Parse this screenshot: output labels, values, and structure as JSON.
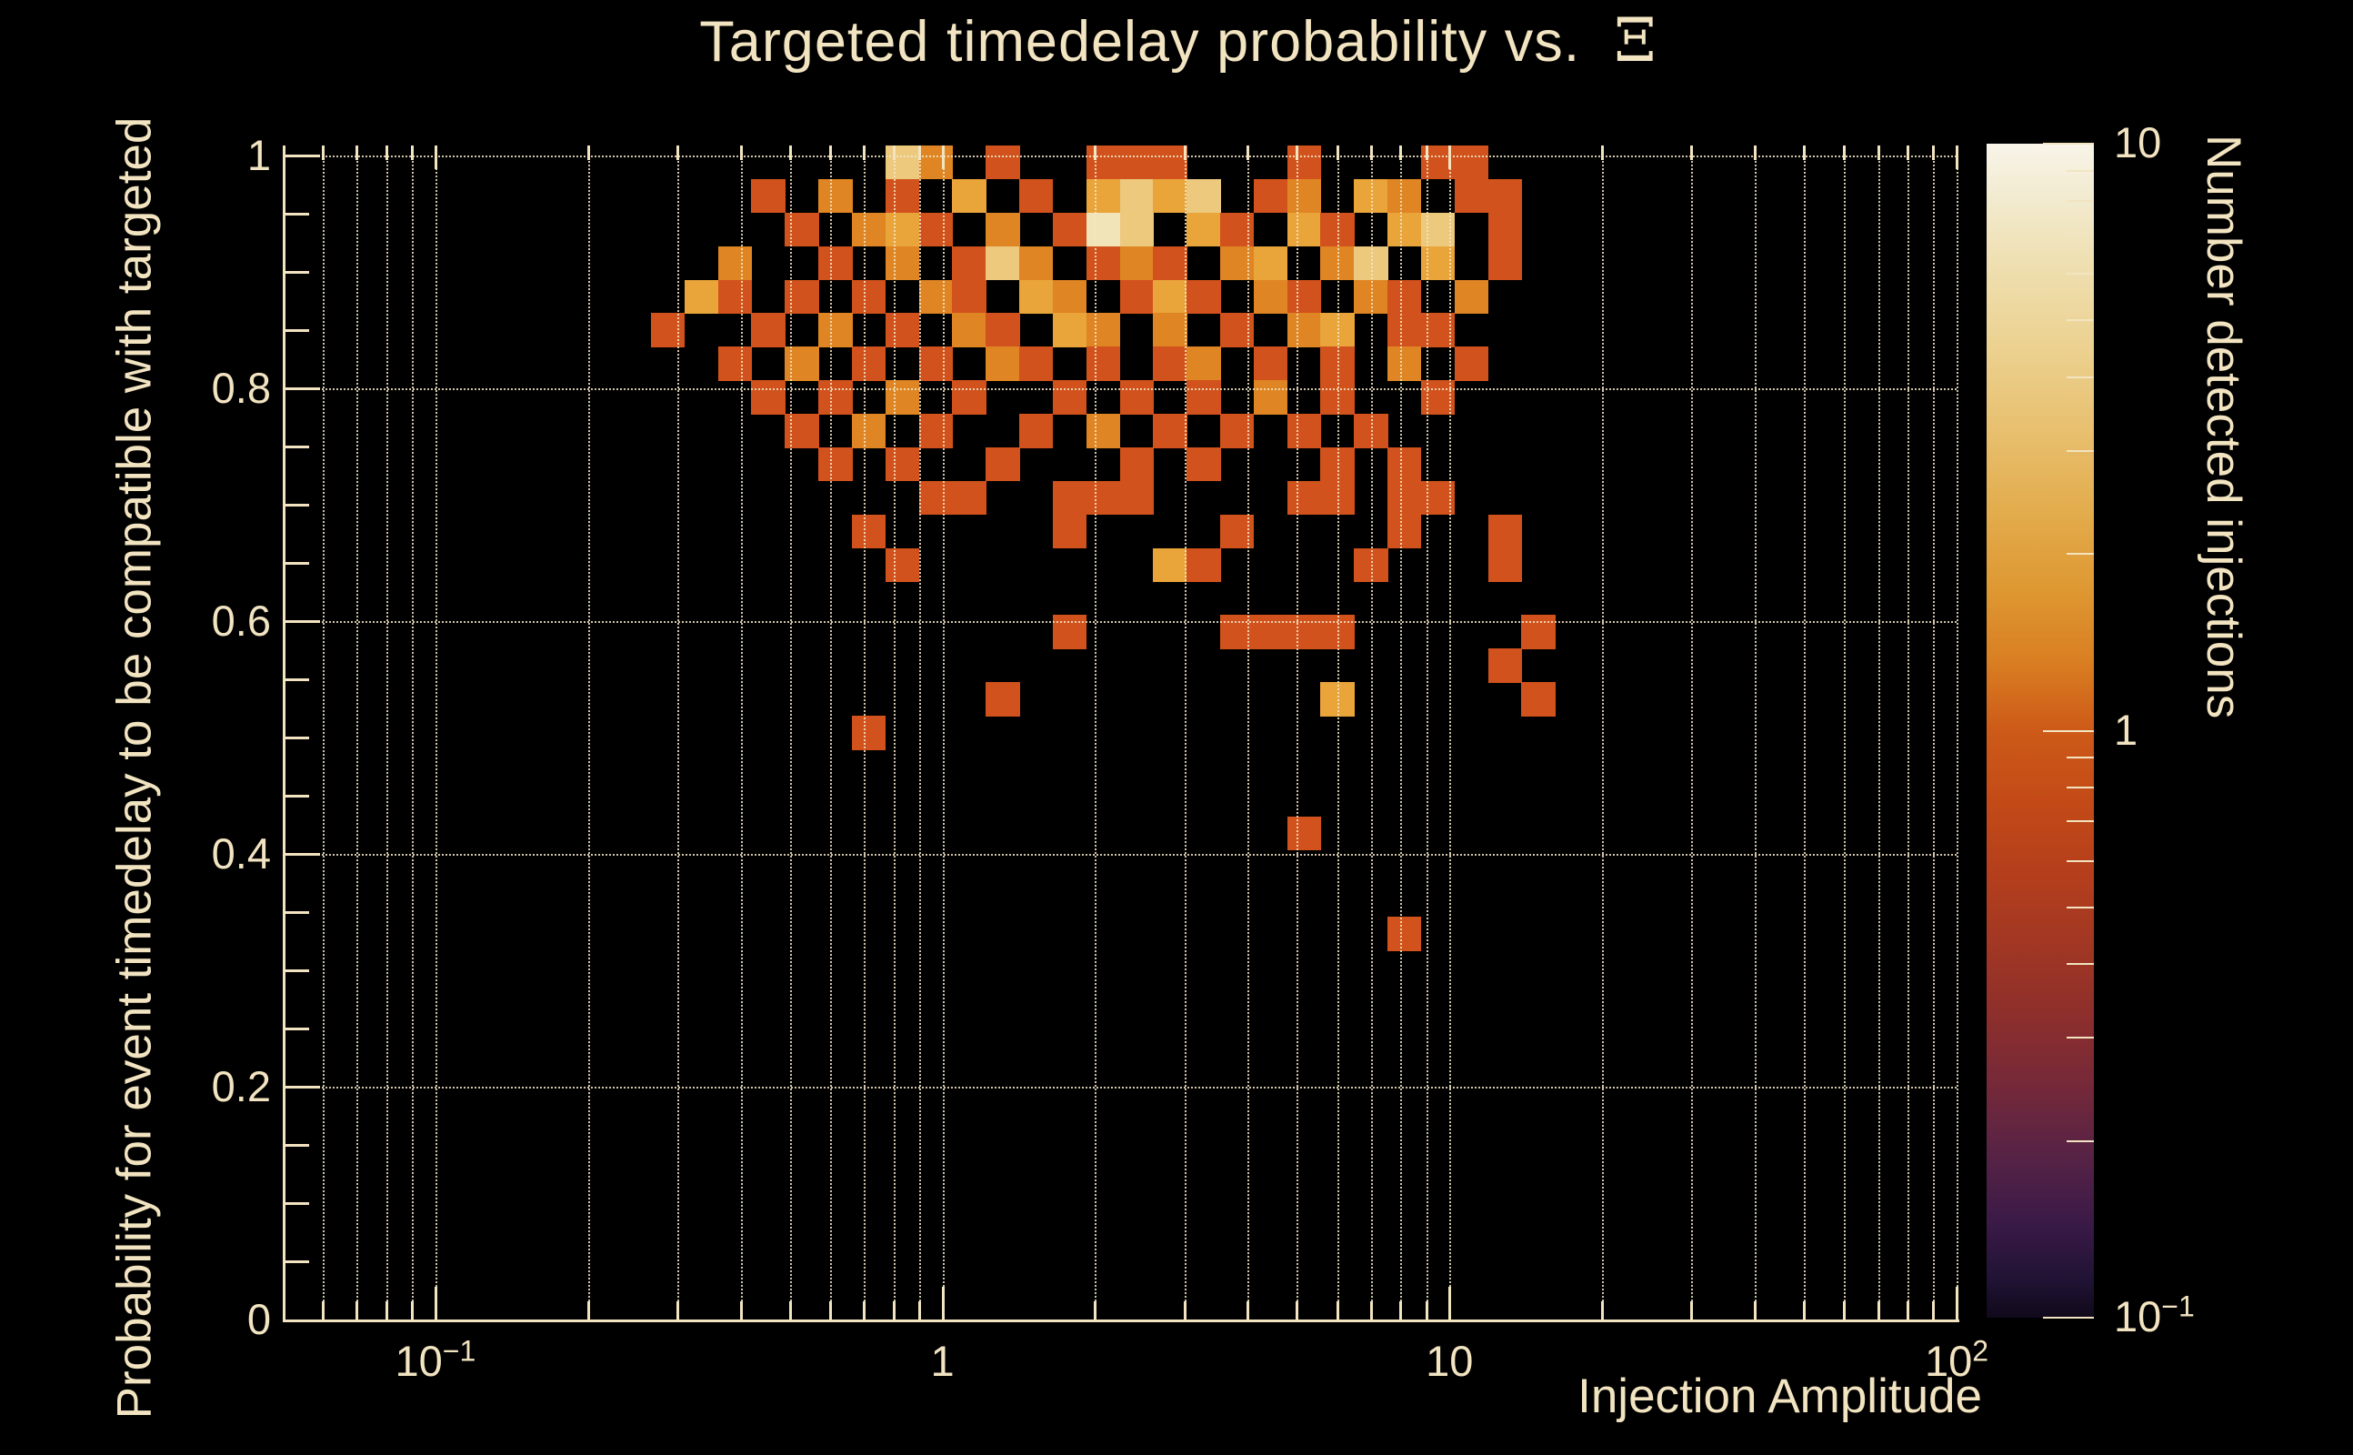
{
  "title": {
    "text": "Targeted timedelay probability vs.  ",
    "symbol": "Ξ"
  },
  "colors": {
    "background": "#000000",
    "foreground": "#f2e4c1",
    "grid": "#f4e8c8"
  },
  "chart_data": {
    "type": "heatmap",
    "title": "Targeted timedelay probability vs. Ξ",
    "xlabel": "Injection Amplitude",
    "ylabel": "Probability for event timedelay to be compatible with targeted",
    "zlabel": "Number detected injections",
    "x_scale": "log",
    "x_range": [
      0.05,
      100
    ],
    "y_scale": "linear",
    "y_range": [
      0,
      1.0086
    ],
    "z_scale": "log",
    "z_range": [
      0.1,
      10
    ],
    "grid": "on",
    "x_bins": 50,
    "y_bins": 35,
    "x_gridlines": [
      0.06,
      0.07,
      0.08,
      0.09,
      0.1,
      0.2,
      0.3,
      0.4,
      0.5,
      0.6,
      0.7,
      0.8,
      0.9,
      1,
      2,
      3,
      4,
      5,
      6,
      7,
      8,
      9,
      10,
      20,
      30,
      40,
      50,
      60,
      70,
      80,
      90,
      100
    ],
    "x_decades": [
      0.1,
      1,
      10,
      100
    ],
    "y_tick_step": 0.05,
    "y_tick_labels": [
      {
        "v": 1,
        "label": "1"
      },
      {
        "v": 0.8,
        "label": "0.8"
      },
      {
        "v": 0.6,
        "label": "0.6"
      },
      {
        "v": 0.4,
        "label": "0.4"
      },
      {
        "v": 0.2,
        "label": "0.2"
      },
      {
        "v": 0,
        "label": "0"
      }
    ],
    "x_tick_labels": [
      {
        "v": 0.1,
        "base": "10",
        "exp": "−1"
      },
      {
        "v": 1,
        "base": "1",
        "exp": ""
      },
      {
        "v": 10,
        "base": "10",
        "exp": ""
      },
      {
        "v": 100,
        "base": "10",
        "exp": "2"
      }
    ],
    "z_tick_labels": [
      {
        "v": 10,
        "base": "10",
        "exp": ""
      },
      {
        "v": 1,
        "base": "1",
        "exp": ""
      },
      {
        "v": 0.1,
        "base": "10",
        "exp": "−1"
      }
    ],
    "z_minor_ticks": [
      9,
      8,
      7,
      6,
      5,
      4,
      3,
      2,
      0.9,
      0.8,
      0.7,
      0.6,
      0.5,
      0.4,
      0.3,
      0.2
    ],
    "palette": {
      "1": "#d1521c",
      "2": "#df8523",
      "3": "#e9a43a",
      "5": "#ecc97d",
      "8": "#f2e4b9"
    },
    "colorbar_stops": [
      {
        "pos": 0.0,
        "color": "#f8f4e8"
      },
      {
        "pos": 0.04,
        "color": "#f3ecd3"
      },
      {
        "pos": 0.1,
        "color": "#efe0b2"
      },
      {
        "pos": 0.17,
        "color": "#ecd292"
      },
      {
        "pos": 0.24,
        "color": "#e8c171"
      },
      {
        "pos": 0.31,
        "color": "#e3ad4e"
      },
      {
        "pos": 0.38,
        "color": "#de9832"
      },
      {
        "pos": 0.44,
        "color": "#d97f22"
      },
      {
        "pos": 0.5,
        "color": "#cd5a18"
      },
      {
        "pos": 0.56,
        "color": "#c34a17"
      },
      {
        "pos": 0.62,
        "color": "#b53f1c"
      },
      {
        "pos": 0.68,
        "color": "#a23723"
      },
      {
        "pos": 0.74,
        "color": "#8e2f2b"
      },
      {
        "pos": 0.8,
        "color": "#762938"
      },
      {
        "pos": 0.86,
        "color": "#582345"
      },
      {
        "pos": 0.92,
        "color": "#3a1a47"
      },
      {
        "pos": 0.97,
        "color": "#1f1233"
      },
      {
        "pos": 1.0,
        "color": "#10091a"
      }
    ],
    "cells": [
      [
        0,
        18,
        5
      ],
      [
        0,
        19,
        2
      ],
      [
        0,
        21,
        1
      ],
      [
        0,
        24,
        1
      ],
      [
        0,
        25,
        1
      ],
      [
        0,
        26,
        1
      ],
      [
        0,
        30,
        1
      ],
      [
        0,
        34,
        1
      ],
      [
        0,
        35,
        1
      ],
      [
        1,
        14,
        1
      ],
      [
        1,
        16,
        2
      ],
      [
        1,
        18,
        1
      ],
      [
        1,
        20,
        3
      ],
      [
        1,
        22,
        1
      ],
      [
        1,
        24,
        3
      ],
      [
        1,
        25,
        5
      ],
      [
        1,
        26,
        3
      ],
      [
        1,
        27,
        5
      ],
      [
        1,
        29,
        1
      ],
      [
        1,
        30,
        2
      ],
      [
        1,
        32,
        3
      ],
      [
        1,
        33,
        2
      ],
      [
        1,
        35,
        1
      ],
      [
        1,
        36,
        1
      ],
      [
        2,
        15,
        1
      ],
      [
        2,
        17,
        2
      ],
      [
        2,
        18,
        3
      ],
      [
        2,
        19,
        1
      ],
      [
        2,
        21,
        2
      ],
      [
        2,
        23,
        1
      ],
      [
        2,
        24,
        8
      ],
      [
        2,
        25,
        5
      ],
      [
        2,
        27,
        3
      ],
      [
        2,
        28,
        1
      ],
      [
        2,
        30,
        3
      ],
      [
        2,
        31,
        1
      ],
      [
        2,
        33,
        3
      ],
      [
        2,
        34,
        5
      ],
      [
        2,
        36,
        1
      ],
      [
        3,
        13,
        2
      ],
      [
        3,
        16,
        1
      ],
      [
        3,
        18,
        2
      ],
      [
        3,
        20,
        1
      ],
      [
        3,
        21,
        5
      ],
      [
        3,
        22,
        2
      ],
      [
        3,
        24,
        1
      ],
      [
        3,
        25,
        2
      ],
      [
        3,
        26,
        1
      ],
      [
        3,
        28,
        2
      ],
      [
        3,
        29,
        3
      ],
      [
        3,
        31,
        2
      ],
      [
        3,
        32,
        5
      ],
      [
        3,
        34,
        3
      ],
      [
        3,
        36,
        1
      ],
      [
        4,
        12,
        3
      ],
      [
        4,
        13,
        1
      ],
      [
        4,
        15,
        1
      ],
      [
        4,
        17,
        1
      ],
      [
        4,
        19,
        2
      ],
      [
        4,
        20,
        1
      ],
      [
        4,
        22,
        3
      ],
      [
        4,
        23,
        2
      ],
      [
        4,
        25,
        1
      ],
      [
        4,
        26,
        3
      ],
      [
        4,
        27,
        1
      ],
      [
        4,
        29,
        2
      ],
      [
        4,
        30,
        1
      ],
      [
        4,
        32,
        2
      ],
      [
        4,
        33,
        1
      ],
      [
        4,
        35,
        2
      ],
      [
        5,
        11,
        1
      ],
      [
        5,
        14,
        1
      ],
      [
        5,
        16,
        2
      ],
      [
        5,
        18,
        1
      ],
      [
        5,
        20,
        2
      ],
      [
        5,
        21,
        1
      ],
      [
        5,
        23,
        3
      ],
      [
        5,
        24,
        2
      ],
      [
        5,
        26,
        2
      ],
      [
        5,
        28,
        1
      ],
      [
        5,
        30,
        2
      ],
      [
        5,
        31,
        3
      ],
      [
        5,
        33,
        1
      ],
      [
        5,
        34,
        1
      ],
      [
        6,
        13,
        1
      ],
      [
        6,
        15,
        2
      ],
      [
        6,
        17,
        1
      ],
      [
        6,
        19,
        1
      ],
      [
        6,
        21,
        2
      ],
      [
        6,
        22,
        1
      ],
      [
        6,
        24,
        1
      ],
      [
        6,
        26,
        1
      ],
      [
        6,
        27,
        2
      ],
      [
        6,
        29,
        1
      ],
      [
        6,
        31,
        1
      ],
      [
        6,
        33,
        2
      ],
      [
        6,
        35,
        1
      ],
      [
        7,
        14,
        1
      ],
      [
        7,
        16,
        1
      ],
      [
        7,
        18,
        2
      ],
      [
        7,
        20,
        1
      ],
      [
        7,
        23,
        1
      ],
      [
        7,
        25,
        1
      ],
      [
        7,
        27,
        1
      ],
      [
        7,
        29,
        2
      ],
      [
        7,
        31,
        1
      ],
      [
        7,
        34,
        1
      ],
      [
        8,
        15,
        1
      ],
      [
        8,
        17,
        2
      ],
      [
        8,
        19,
        1
      ],
      [
        8,
        22,
        1
      ],
      [
        8,
        24,
        2
      ],
      [
        8,
        26,
        1
      ],
      [
        8,
        28,
        1
      ],
      [
        8,
        30,
        1
      ],
      [
        8,
        32,
        1
      ],
      [
        9,
        16,
        1
      ],
      [
        9,
        18,
        1
      ],
      [
        9,
        21,
        1
      ],
      [
        9,
        25,
        1
      ],
      [
        9,
        27,
        1
      ],
      [
        9,
        31,
        1
      ],
      [
        9,
        33,
        1
      ],
      [
        10,
        19,
        1
      ],
      [
        10,
        20,
        1
      ],
      [
        10,
        23,
        1
      ],
      [
        10,
        24,
        1
      ],
      [
        10,
        25,
        1
      ],
      [
        10,
        30,
        1
      ],
      [
        10,
        31,
        1
      ],
      [
        10,
        33,
        1
      ],
      [
        10,
        34,
        1
      ],
      [
        11,
        17,
        1
      ],
      [
        11,
        23,
        1
      ],
      [
        11,
        28,
        1
      ],
      [
        11,
        33,
        1
      ],
      [
        11,
        36,
        1
      ],
      [
        12,
        18,
        1
      ],
      [
        12,
        26,
        3
      ],
      [
        12,
        27,
        1
      ],
      [
        12,
        32,
        1
      ],
      [
        12,
        36,
        1
      ],
      [
        14,
        23,
        1
      ],
      [
        14,
        28,
        1
      ],
      [
        14,
        29,
        1
      ],
      [
        14,
        30,
        1
      ],
      [
        14,
        31,
        1
      ],
      [
        14,
        37,
        1
      ],
      [
        15,
        36,
        1
      ],
      [
        16,
        21,
        1
      ],
      [
        16,
        31,
        3
      ],
      [
        16,
        37,
        1
      ],
      [
        17,
        17,
        1
      ],
      [
        20,
        30,
        1
      ],
      [
        23,
        33,
        1
      ]
    ]
  }
}
